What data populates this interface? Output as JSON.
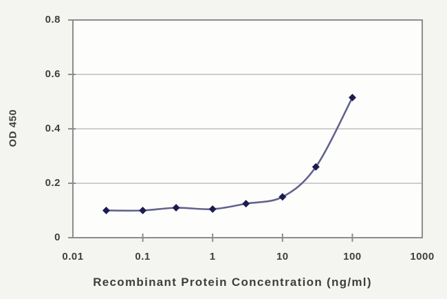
{
  "chart_data": {
    "type": "line",
    "title": "",
    "xlabel": "Recombinant Protein Concentration (ng/ml)",
    "ylabel": "OD 450",
    "x_scale": "log",
    "xlim": [
      0.01,
      1000
    ],
    "ylim": [
      0,
      0.8
    ],
    "x_ticks": [
      0.01,
      0.1,
      1,
      10,
      100,
      1000
    ],
    "x_tick_labels": [
      "0.01",
      "0.1",
      "1",
      "10",
      "100",
      "1000"
    ],
    "y_ticks": [
      0,
      0.2,
      0.4,
      0.6,
      0.8
    ],
    "y_tick_labels": [
      "0",
      "0.2",
      "0.4",
      "0.6",
      "0.8"
    ],
    "grid": "horizontal",
    "legend": "none",
    "series": [
      {
        "name": "OD 450",
        "marker": "diamond",
        "x": [
          0.03,
          0.1,
          0.3,
          1,
          3,
          10,
          30,
          100
        ],
        "y": [
          0.1,
          0.1,
          0.11,
          0.105,
          0.125,
          0.15,
          0.26,
          0.515
        ]
      }
    ]
  },
  "colors": {
    "page_background": "#f4f4f1",
    "plot_background": "#fdfdfc",
    "frame": "#8c8c8c",
    "grid": "#b3b3b3",
    "tick": "#8c8c8c",
    "line": "#62628c",
    "marker": "#1c1c52",
    "text": "#3e3e3e"
  }
}
